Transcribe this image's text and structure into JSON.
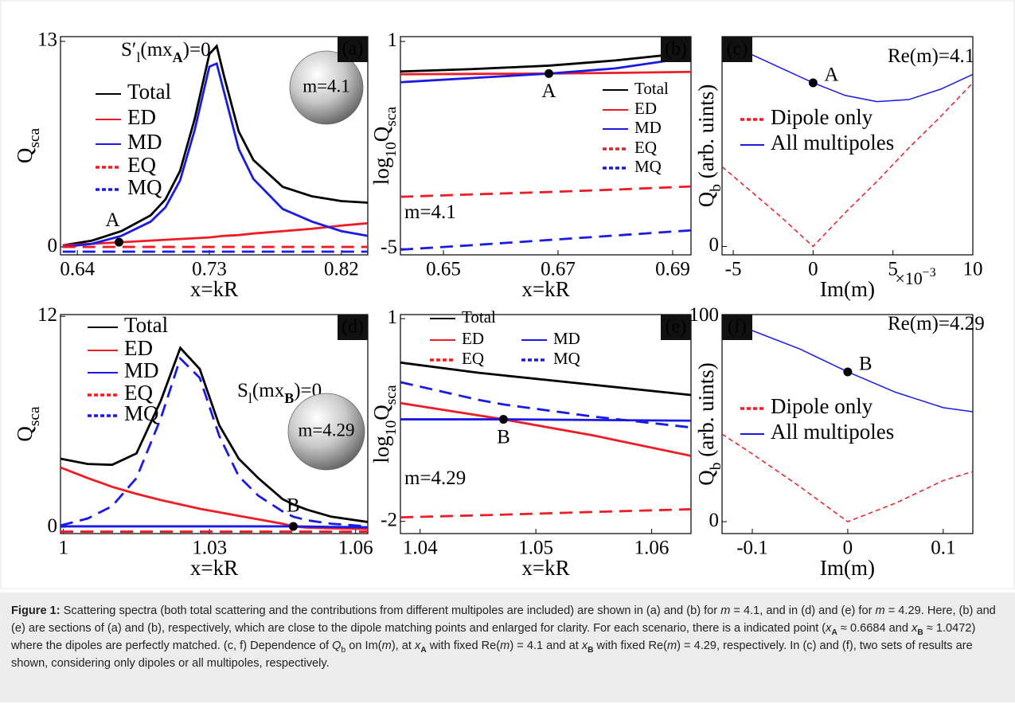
{
  "chart_data": [
    {
      "type": "line",
      "panel_label": "(a)",
      "x_label": [
        {
          "text": "x=kR"
        }
      ],
      "y_label": [
        {
          "text": "Q"
        },
        {
          "text": "sca",
          "sub": true
        }
      ],
      "annotations": [
        {
          "parts": [
            {
              "text": "S′"
            },
            {
              "text": "l",
              "sub": true
            },
            {
              "text": "(mx"
            },
            {
              "text": "A",
              "sub": true,
              "bold": true
            },
            {
              "text": ")=0"
            }
          ]
        }
      ],
      "inset_sphere": "m=4.1",
      "xlim": [
        0.6285,
        0.838
      ],
      "xticks": [
        0.64,
        0.73,
        0.82
      ],
      "ylim": [
        -0.5,
        13.3
      ],
      "yticks": [
        0,
        13
      ],
      "x": [
        0.63,
        0.65,
        0.67,
        0.69,
        0.7,
        0.71,
        0.72,
        0.73,
        0.735,
        0.74,
        0.75,
        0.76,
        0.78,
        0.8,
        0.82,
        0.838
      ],
      "series": [
        {
          "name": "Total",
          "color": "#000000",
          "dash": false,
          "values": [
            0.1,
            0.4,
            1.0,
            2.0,
            3.0,
            4.8,
            8.1,
            12.2,
            12.7,
            10.8,
            7.3,
            5.5,
            3.8,
            3.2,
            2.9,
            2.8
          ]
        },
        {
          "name": "ED",
          "color": "#ee1c25",
          "dash": false,
          "values": [
            0.1,
            0.2,
            0.3,
            0.4,
            0.45,
            0.5,
            0.55,
            0.6,
            0.65,
            0.7,
            0.75,
            0.85,
            1.0,
            1.15,
            1.35,
            1.5
          ]
        },
        {
          "name": "MD",
          "color": "#1a1ae6",
          "dash": false,
          "values": [
            0,
            0.2,
            0.7,
            1.6,
            2.5,
            4.2,
            7.4,
            11.4,
            11.6,
            9.8,
            6.2,
            4.3,
            2.4,
            1.6,
            1.0,
            0.7
          ]
        },
        {
          "name": "EQ",
          "color": "#ee1c25",
          "dash": true,
          "values": [
            0,
            0,
            0,
            0,
            0,
            0,
            0,
            0,
            0,
            0,
            0,
            0,
            0,
            0,
            0,
            0
          ]
        },
        {
          "name": "MQ",
          "color": "#1a1ae6",
          "dash": true,
          "values": [
            -0.3,
            -0.3,
            -0.3,
            -0.3,
            -0.3,
            -0.3,
            -0.3,
            -0.3,
            -0.3,
            -0.3,
            -0.3,
            -0.3,
            -0.3,
            -0.3,
            -0.3,
            -0.3
          ]
        }
      ],
      "points": [
        {
          "label": "A",
          "x": 0.6684,
          "y": 0.3
        }
      ]
    },
    {
      "type": "line",
      "panel_label": "(b)",
      "x_label": [
        {
          "text": "x=kR"
        }
      ],
      "y_label": [
        {
          "text": "log"
        },
        {
          "text": "10",
          "sub": true
        },
        {
          "text": "Q"
        },
        {
          "text": "sca",
          "sub": true
        }
      ],
      "annotations": [
        {
          "parts": [
            {
              "text": "m=4.1"
            }
          ]
        }
      ],
      "xlim": [
        0.6425,
        0.6932
      ],
      "xticks": [
        0.65,
        0.67,
        0.69
      ],
      "ylim": [
        -5.18,
        1.14
      ],
      "yticks": [
        -5,
        1
      ],
      "x": [
        0.6425,
        0.655,
        0.6684,
        0.68,
        0.6932
      ],
      "series": [
        {
          "name": "Total",
          "color": "#000000",
          "dash": false,
          "values": [
            0.13,
            0.2,
            0.3,
            0.45,
            0.68
          ]
        },
        {
          "name": "ED",
          "color": "#ee1c25",
          "dash": false,
          "values": [
            0.05,
            0.06,
            0.07,
            0.09,
            0.12
          ]
        },
        {
          "name": "MD",
          "color": "#1a1ae6",
          "dash": false,
          "values": [
            -0.18,
            -0.06,
            0.07,
            0.22,
            0.54
          ]
        },
        {
          "name": "EQ",
          "color": "#ee1c25",
          "dash": true,
          "values": [
            -3.5,
            -3.43,
            -3.36,
            -3.29,
            -3.2
          ]
        },
        {
          "name": "MQ",
          "color": "#1a1ae6",
          "dash": true,
          "values": [
            -5.03,
            -4.9,
            -4.75,
            -4.62,
            -4.47
          ]
        }
      ],
      "points": [
        {
          "label": "A",
          "x": 0.6684,
          "y": 0.07
        }
      ]
    },
    {
      "type": "line",
      "panel_label": "(c)",
      "x_label": [
        {
          "text": "Im(m)"
        }
      ],
      "x_multiplier": [
        {
          "text": "×10"
        },
        {
          "text": "−3",
          "sup": true
        }
      ],
      "y_label": [
        {
          "text": "Q"
        },
        {
          "text": "b",
          "sub": true
        },
        {
          "text": " (arb. uints)"
        }
      ],
      "annotations": [
        {
          "parts": [
            {
              "text": "Re(m)=4.1"
            }
          ]
        }
      ],
      "xlim": [
        -5.7,
        10
      ],
      "xticks": [
        -5,
        0,
        5,
        10
      ],
      "ylim": [
        -0.04,
        1.0
      ],
      "yticks": [
        0
      ],
      "x": [
        -5.7,
        -4,
        -2,
        0,
        2,
        4,
        6,
        8,
        10
      ],
      "series": [
        {
          "name": "Dipole only",
          "color": "#ee1c25",
          "dash": true,
          "thin": true,
          "values": [
            0.38,
            0.27,
            0.14,
            0,
            0.16,
            0.31,
            0.47,
            0.62,
            0.78
          ]
        },
        {
          "name": "All multipoles",
          "color": "#1a1ae6",
          "dash": false,
          "thin": true,
          "values": [
            0.97,
            0.92,
            0.85,
            0.78,
            0.72,
            0.69,
            0.7,
            0.75,
            0.82
          ]
        }
      ],
      "points": [
        {
          "label": "A",
          "x": 0,
          "y": 0.78
        }
      ]
    },
    {
      "type": "line",
      "panel_label": "(d)",
      "x_label": [
        {
          "text": "x=kR"
        }
      ],
      "y_label": [
        {
          "text": "Q"
        },
        {
          "text": "sca",
          "sub": true
        }
      ],
      "annotations": [
        {
          "parts": [
            {
              "text": "S"
            },
            {
              "text": "l",
              "sub": true
            },
            {
              "text": "(mx"
            },
            {
              "text": "B",
              "sub": true,
              "bold": true
            },
            {
              "text": ")=0"
            }
          ]
        }
      ],
      "inset_sphere": "m=4.29",
      "xlim": [
        0.9994,
        1.0625
      ],
      "xticks": [
        1,
        1.03,
        1.06
      ],
      "ylim": [
        -0.36,
        12.1
      ],
      "yticks": [
        0,
        12
      ],
      "x": [
        0.9994,
        1.005,
        1.01,
        1.015,
        1.02,
        1.024,
        1.028,
        1.032,
        1.036,
        1.04,
        1.045,
        1.0472,
        1.05,
        1.055,
        1.0625
      ],
      "series": [
        {
          "name": "Total",
          "color": "#000000",
          "dash": false,
          "values": [
            3.9,
            3.6,
            3.55,
            4.2,
            7.2,
            10.2,
            9.0,
            5.8,
            3.9,
            2.8,
            1.6,
            1.3,
            1.0,
            0.6,
            0.3
          ]
        },
        {
          "name": "ED",
          "color": "#ee1c25",
          "dash": false,
          "values": [
            3.4,
            2.8,
            2.3,
            1.9,
            1.55,
            1.3,
            1.05,
            0.85,
            0.65,
            0.45,
            0.2,
            0.05,
            -0.02,
            -0.06,
            -0.1
          ]
        },
        {
          "name": "MD",
          "color": "#1a1ae6",
          "dash": false,
          "values": [
            0.05,
            0.05,
            0.05,
            0.05,
            0.05,
            0.05,
            0.05,
            0.05,
            0.05,
            0.05,
            0.05,
            0.05,
            0.04,
            0.02,
            0.0
          ]
        },
        {
          "name": "EQ",
          "color": "#ee1c25",
          "dash": true,
          "values": [
            -0.25,
            -0.25,
            -0.25,
            -0.25,
            -0.25,
            -0.25,
            -0.25,
            -0.25,
            -0.25,
            -0.25,
            -0.25,
            -0.25,
            -0.25,
            -0.25,
            -0.25
          ]
        },
        {
          "name": "MQ",
          "color": "#1a1ae6",
          "dash": true,
          "values": [
            0.1,
            0.5,
            1.2,
            2.8,
            6.2,
            9.6,
            8.5,
            5.2,
            2.9,
            1.8,
            0.9,
            0.6,
            0.4,
            0.2,
            0.05
          ]
        }
      ],
      "points": [
        {
          "label": "B",
          "x": 1.0472,
          "y": 0.05
        }
      ]
    },
    {
      "type": "line",
      "panel_label": "(e)",
      "x_label": [
        {
          "text": "x=kR"
        }
      ],
      "y_label": [
        {
          "text": "log"
        },
        {
          "text": "10",
          "sub": true
        },
        {
          "text": "Q"
        },
        {
          "text": "sca",
          "sub": true
        }
      ],
      "annotations": [
        {
          "parts": [
            {
              "text": "m=4.29"
            }
          ]
        }
      ],
      "xlim": [
        1.0383,
        1.0634
      ],
      "xticks": [
        1.04,
        1.05,
        1.06
      ],
      "ylim": [
        -2.18,
        1.06
      ],
      "yticks": [
        -2,
        1
      ],
      "x": [
        1.0383,
        1.045,
        1.0472,
        1.055,
        1.0634
      ],
      "series": [
        {
          "name": "Total",
          "color": "#000000",
          "dash": false,
          "values": [
            0.35,
            0.2,
            0.16,
            0.02,
            -0.13
          ]
        },
        {
          "name": "ED",
          "color": "#ee1c25",
          "dash": false,
          "values": [
            -0.25,
            -0.43,
            -0.49,
            -0.73,
            -1.03
          ]
        },
        {
          "name": "MD",
          "color": "#1a1ae6",
          "dash": false,
          "values": [
            -0.49,
            -0.49,
            -0.49,
            -0.5,
            -0.51
          ]
        },
        {
          "name": "EQ",
          "color": "#ee1c25",
          "dash": true,
          "values": [
            -1.94,
            -1.91,
            -1.9,
            -1.86,
            -1.82
          ]
        },
        {
          "name": "MQ",
          "color": "#1a1ae6",
          "dash": true,
          "values": [
            0.06,
            -0.2,
            -0.27,
            -0.45,
            -0.61
          ]
        }
      ],
      "points": [
        {
          "label": "B",
          "x": 1.0472,
          "y": -0.49
        }
      ]
    },
    {
      "type": "line",
      "panel_label": "(f)",
      "x_label": [
        {
          "text": "Im(m)"
        }
      ],
      "y_label": [
        {
          "text": "Q"
        },
        {
          "text": "b",
          "sub": true
        },
        {
          "text": " (arb. uints)"
        }
      ],
      "annotations": [
        {
          "parts": [
            {
              "text": "Re(m)=4.29"
            }
          ]
        }
      ],
      "xlim": [
        -0.1317,
        0.131
      ],
      "xticks": [
        -0.1,
        0,
        0.1
      ],
      "ylim": [
        -5.8,
        100.8
      ],
      "yticks": [
        0,
        100
      ],
      "x": [
        -0.1317,
        -0.1,
        -0.05,
        0,
        0.05,
        0.1,
        0.131
      ],
      "series": [
        {
          "name": "Dipole only",
          "color": "#ee1c25",
          "dash": true,
          "thin": true,
          "values": [
            42.6,
            33,
            17,
            0,
            9,
            20,
            24.4
          ]
        },
        {
          "name": "All multipoles",
          "color": "#1a1ae6",
          "dash": false,
          "thin": true,
          "values": [
            96.9,
            93,
            84,
            72.9,
            63,
            55.5,
            53.5
          ]
        }
      ],
      "points": [
        {
          "label": "B",
          "x": 0,
          "y": 72.9
        }
      ]
    }
  ],
  "caption": [
    {
      "text": "Figure 1:",
      "bold": true
    },
    {
      "text": " Scattering spectra (both total scattering and the contributions from different multipoles are included) are shown in (a) and (b) for "
    },
    {
      "text": "m",
      "italic": true
    },
    {
      "text": " = 4.1, and in (d) and (e) for "
    },
    {
      "text": "m",
      "italic": true
    },
    {
      "text": " = 4.29. Here, (b) and (e) are sections of (a) and (b), respectively, which are close to the dipole matching points and enlarged for clarity. For each scenario, there is a indicated point ("
    },
    {
      "text": "x",
      "italic": true
    },
    {
      "text": "A",
      "sub": true,
      "bold": true
    },
    {
      "text": " ≈ 0.6684 and "
    },
    {
      "text": "x",
      "italic": true
    },
    {
      "text": "B",
      "sub": true,
      "bold": true
    },
    {
      "text": " ≈ 1.0472) where the dipoles are perfectly matched. (c, f) Dependence of "
    },
    {
      "text": "Q",
      "italic": true
    },
    {
      "text": "b",
      "sub": true
    },
    {
      "text": " on Im("
    },
    {
      "text": "m",
      "italic": true
    },
    {
      "text": "), at "
    },
    {
      "text": "x",
      "italic": true
    },
    {
      "text": "A",
      "sub": true,
      "bold": true
    },
    {
      "text": " with fixed Re("
    },
    {
      "text": "m",
      "italic": true
    },
    {
      "text": ") = 4.1 and at "
    },
    {
      "text": "x",
      "italic": true
    },
    {
      "text": "B",
      "sub": true,
      "bold": true
    },
    {
      "text": " with fixed Re("
    },
    {
      "text": "m",
      "italic": true
    },
    {
      "text": ") = 4.29, respectively. In (c) and (f), two sets of results are shown, considering only dipoles or all multipoles, respectively."
    }
  ]
}
